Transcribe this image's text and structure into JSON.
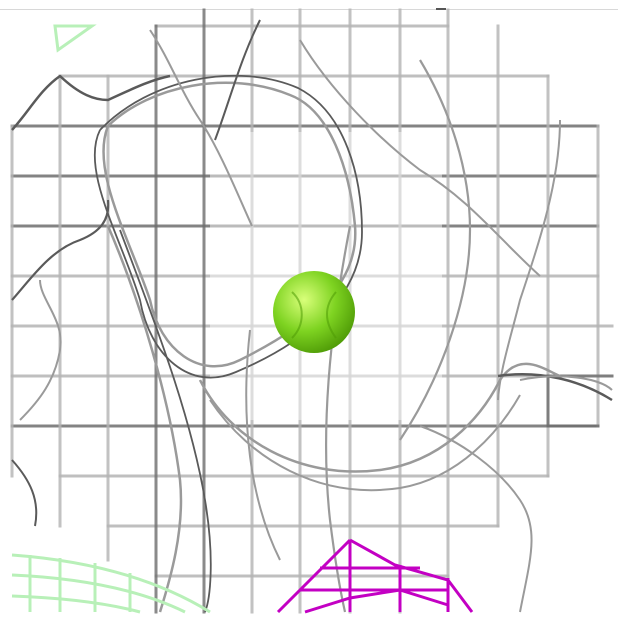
{
  "scene": {
    "background_color": "#ffffff",
    "mesh_colors": {
      "grid_light": "#e6e6e6",
      "grid_mid": "#b4b4b4",
      "grid_dark": "#6e6e6e",
      "contour": "#9a9a9a",
      "contour_dark": "#5a5a5a"
    },
    "atom": {
      "element_color": "#7ed321",
      "highlight_color": "#d9ff7a",
      "shadow_color": "#4e9a06"
    },
    "neighbor_mesh_color": "#c300c3",
    "side_mesh_color": "#b8f0b8"
  }
}
